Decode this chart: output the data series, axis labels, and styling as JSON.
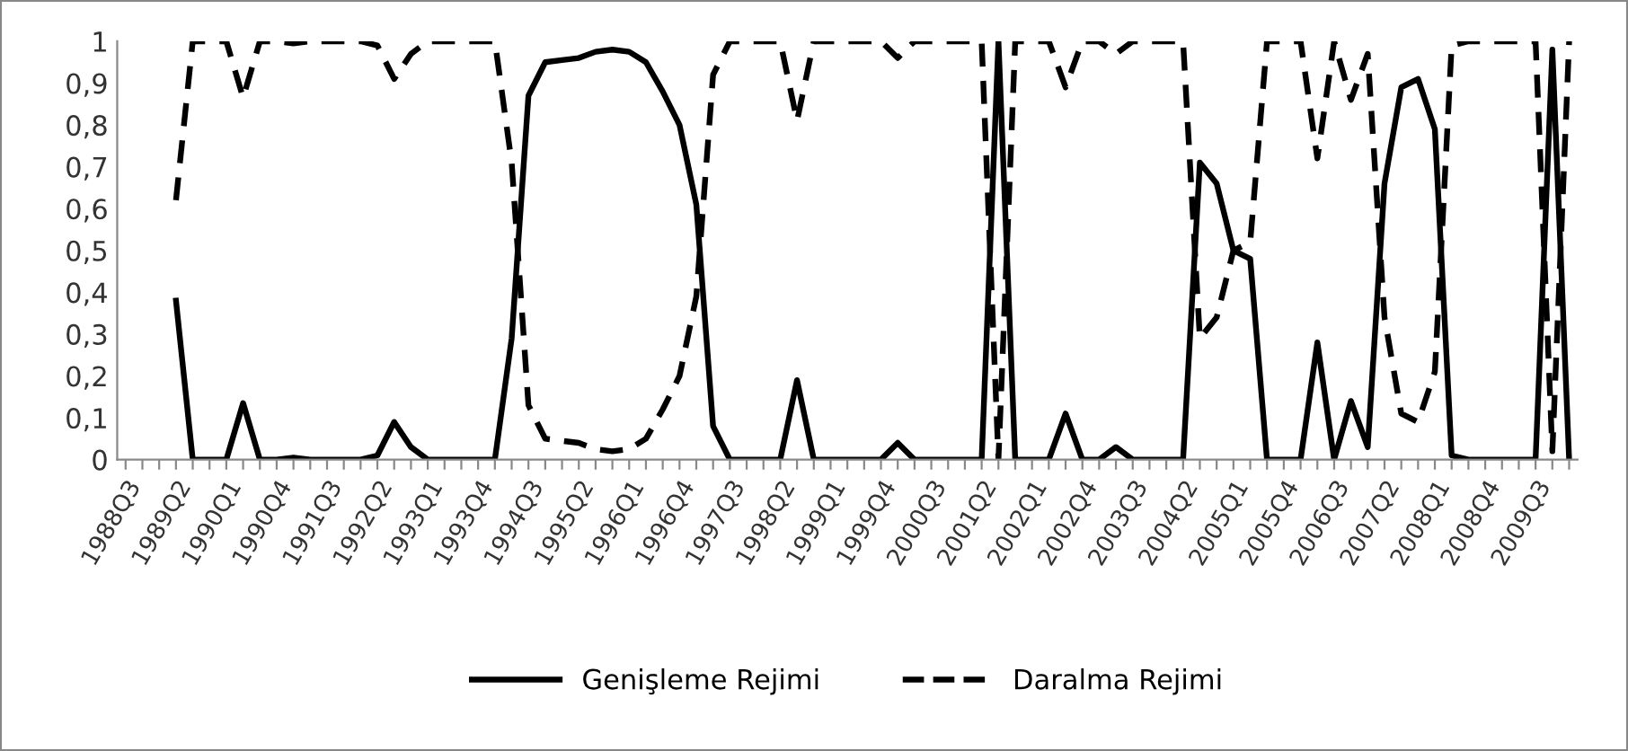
{
  "chart_data": {
    "type": "line",
    "categories": [
      "1988Q3",
      null,
      null,
      "1989Q2",
      null,
      null,
      "1990Q1",
      null,
      null,
      "1990Q4",
      null,
      null,
      "1991Q3",
      null,
      null,
      "1992Q2",
      null,
      null,
      "1993Q1",
      null,
      null,
      "1993Q4",
      null,
      null,
      "1994Q3",
      null,
      null,
      "1995Q2",
      null,
      null,
      "1996Q1",
      null,
      null,
      "1996Q4",
      null,
      null,
      "1997Q3",
      null,
      null,
      "1998Q2",
      null,
      null,
      "1999Q1",
      null,
      null,
      "1999Q4",
      null,
      null,
      "2000Q3",
      null,
      null,
      "2001Q2",
      null,
      null,
      "2002Q1",
      null,
      null,
      "2002Q4",
      null,
      null,
      "2003Q3",
      null,
      null,
      "2004Q2",
      null,
      null,
      "2005Q1",
      null,
      null,
      "2005Q4",
      null,
      null,
      "2006Q3",
      null,
      null,
      "2007Q2",
      null,
      null,
      "2008Q1",
      null,
      null,
      "2008Q4",
      null,
      null,
      "2009Q3",
      null,
      null
    ],
    "series": [
      {
        "name": "Genişleme Rejimi",
        "color": "#000000",
        "line_style": "solid",
        "values": [
          null,
          null,
          null,
          0.38,
          0,
          0,
          0,
          0.135,
          0,
          0,
          0.005,
          0,
          0,
          0,
          0,
          0.01,
          0.09,
          0.03,
          0,
          0,
          0,
          0,
          0,
          0.29,
          0.87,
          0.95,
          0.955,
          0.96,
          0.975,
          0.98,
          0.975,
          0.95,
          0.88,
          0.8,
          0.61,
          0.08,
          0,
          0,
          0,
          0,
          0.19,
          0,
          0,
          0,
          0,
          0,
          0.04,
          0,
          0,
          0,
          0,
          0,
          1,
          0,
          0,
          0,
          0.11,
          0,
          0,
          0.03,
          0,
          0,
          0,
          0,
          0.71,
          0.66,
          0.5,
          0.48,
          0,
          0,
          0,
          0.28,
          0,
          0.14,
          0.03,
          0.66,
          0.89,
          0.91,
          0.79,
          0.01,
          0,
          0,
          0,
          0,
          0,
          0.98,
          0
        ]
      },
      {
        "name": "Daralma Rejimi",
        "color": "#000000",
        "line_style": "dashed",
        "values": [
          null,
          null,
          null,
          0.62,
          1,
          1,
          1,
          0.865,
          1,
          1,
          0.995,
          1,
          1,
          1,
          1,
          0.99,
          0.91,
          0.97,
          1,
          1,
          1,
          1,
          1,
          0.71,
          0.13,
          0.05,
          0.045,
          0.04,
          0.025,
          0.02,
          0.025,
          0.05,
          0.12,
          0.2,
          0.39,
          0.92,
          1,
          1,
          1,
          1,
          0.81,
          1,
          1,
          1,
          1,
          1,
          0.96,
          1,
          1,
          1,
          1,
          1,
          0,
          1,
          1,
          1,
          0.89,
          1,
          1,
          0.97,
          1,
          1,
          1,
          1,
          0.29,
          0.34,
          0.5,
          0.52,
          1,
          1,
          1,
          0.72,
          1,
          0.86,
          0.97,
          0.34,
          0.11,
          0.09,
          0.21,
          0.99,
          1,
          1,
          1,
          1,
          1,
          0.02,
          1
        ]
      }
    ],
    "ylim": [
      0,
      1
    ],
    "yticks": [
      0,
      {
        "value": 0.1,
        "label": "0,1"
      },
      {
        "value": 0.2,
        "label": "0,2"
      },
      {
        "value": 0.3,
        "label": "0,3"
      },
      {
        "value": 0.4,
        "label": "0,4"
      },
      {
        "value": 0.5,
        "label": "0,5"
      },
      {
        "value": 0.6,
        "label": "0,6"
      },
      {
        "value": 0.7,
        "label": "0,7"
      },
      {
        "value": 0.8,
        "label": "0,8"
      },
      {
        "value": 0.9,
        "label": "0,9"
      },
      1
    ],
    "grid": false,
    "legend": "bottom"
  }
}
